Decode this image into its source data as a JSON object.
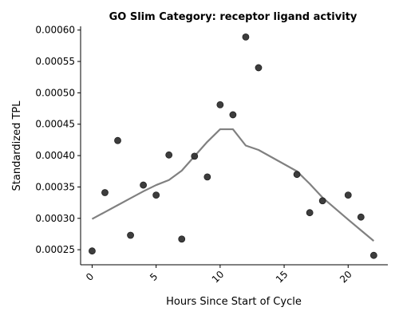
{
  "chart_data": {
    "type": "scatter",
    "title": "GO Slim Category: receptor ligand activity",
    "xlabel": "Hours Since Start of Cycle",
    "ylabel": "Standardized TPL",
    "xlim": [
      -0.9,
      23.1
    ],
    "ylim": [
      0.000226,
      0.000606
    ],
    "xticks": [
      0,
      5,
      10,
      15,
      20
    ],
    "xtick_labels": [
      "0",
      "5",
      "10",
      "15",
      "20"
    ],
    "yticks": [
      0.00025,
      0.0003,
      0.00035,
      0.0004,
      0.00045,
      0.0005,
      0.00055,
      0.0006
    ],
    "ytick_labels": [
      "0.00025",
      "0.00030",
      "0.00035",
      "0.00040",
      "0.00045",
      "0.00050",
      "0.00055",
      "0.00060"
    ],
    "grid": false,
    "point_color": "#333333",
    "line_color": "#808080",
    "series": [
      {
        "type": "scatter",
        "x": [
          0,
          1,
          2,
          3,
          4,
          5,
          6,
          7,
          8,
          9,
          10,
          11,
          12,
          13,
          16,
          17,
          18,
          20,
          21,
          22
        ],
        "y": [
          0.000248,
          0.000341,
          0.000424,
          0.000273,
          0.000353,
          0.000337,
          0.000401,
          0.000267,
          0.000399,
          0.000366,
          0.000481,
          0.000465,
          0.000589,
          0.00054,
          0.00037,
          0.000309,
          0.000328,
          0.000337,
          0.000302,
          0.000241
        ]
      },
      {
        "type": "line",
        "x": [
          0,
          1,
          2,
          3,
          4,
          5,
          6,
          7,
          8,
          9,
          10,
          11,
          12,
          13,
          16,
          17,
          18,
          20,
          21,
          22
        ],
        "y": [
          0.000299,
          0.00031,
          0.000321,
          0.000332,
          0.000343,
          0.000353,
          0.000361,
          0.000376,
          0.000399,
          0.000422,
          0.000442,
          0.000442,
          0.000416,
          0.000409,
          0.000375,
          0.000355,
          0.000333,
          0.000298,
          0.000281,
          0.000264
        ]
      }
    ]
  }
}
